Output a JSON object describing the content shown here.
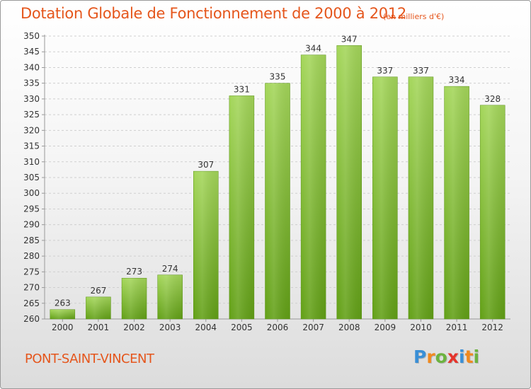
{
  "title": "Dotation Globale de Fonctionnement de 2000 à 2012",
  "units_note": "(en milliers d'€)",
  "commune": "PONT-SAINT-VINCENT",
  "logo": {
    "letters": [
      "P",
      "r",
      "o",
      "x",
      "i",
      "t",
      "i"
    ],
    "colors": [
      "#3a8fd6",
      "#f0891e",
      "#6cb33f",
      "#e5342b",
      "#3a8fd6",
      "#f0891e",
      "#6cb33f"
    ]
  },
  "colors": {
    "accent": "#e5561c",
    "bar_light": "#a4d65a",
    "bar_dark": "#62a016"
  },
  "chart_data": {
    "type": "bar",
    "categories": [
      "2000",
      "2001",
      "2002",
      "2003",
      "2004",
      "2005",
      "2006",
      "2007",
      "2008",
      "2009",
      "2010",
      "2011",
      "2012"
    ],
    "values": [
      263,
      267,
      273,
      274,
      307,
      331,
      335,
      344,
      347,
      337,
      337,
      334,
      328
    ],
    "ylim": [
      260,
      350
    ],
    "yticks": [
      260,
      265,
      270,
      275,
      280,
      285,
      290,
      295,
      300,
      305,
      310,
      315,
      320,
      325,
      330,
      335,
      340,
      345,
      350
    ],
    "grid": true,
    "data_labels": true
  }
}
